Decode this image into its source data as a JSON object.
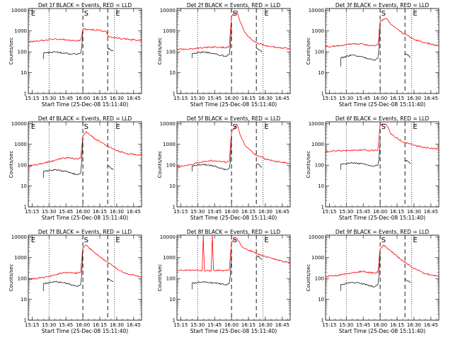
{
  "figure": {
    "ylabel": "Counts/sec",
    "xlabel": "Start Time (25-Dec-08 15:11:40)",
    "x_ticks": [
      "15:15",
      "15:30",
      "15:45",
      "16:00",
      "16:15",
      "16:30",
      "16:45"
    ],
    "y_ticks": [
      "1",
      "10",
      "100",
      "1000",
      "10000"
    ],
    "series_colors": {
      "events": "#000000",
      "lld": "#ff0000"
    },
    "marker_labels": {
      "E": "E",
      "S": "S"
    }
  },
  "chart_data": [
    {
      "type": "line",
      "title": "Det 1f BLACK = Events, RED = LLD",
      "xlim": [
        "15:11:40",
        "16:52:00"
      ],
      "ylim": [
        1,
        12000
      ],
      "log_y": true,
      "dotted_lines": [
        "15:30",
        "16:28"
      ],
      "dashed_lines": [
        "16:00",
        "16:22"
      ],
      "labels": [
        {
          "text": "E",
          "x": "15:14"
        },
        {
          "text": "S",
          "x": "16:01"
        },
        {
          "text": "E",
          "x": "16:29"
        }
      ],
      "events": {
        "x": [
          "15:25",
          "15:25",
          "15:35",
          "15:45",
          "15:55",
          "15:58",
          "15:59",
          "16:00"
        ],
        "y": [
          45,
          85,
          100,
          85,
          75,
          85,
          160,
          1000
        ]
      },
      "events_post": {
        "x": [
          "16:22",
          "16:24",
          "16:27"
        ],
        "y": [
          150,
          130,
          110
        ]
      },
      "lld": {
        "x": [
          "15:11:40",
          "15:25",
          "15:35",
          "15:45",
          "15:52",
          "15:58",
          "16:00",
          "16:05",
          "16:15",
          "16:21",
          "16:22",
          "16:25",
          "16:35",
          "16:45",
          "16:52"
        ],
        "y": [
          300,
          350,
          420,
          380,
          340,
          360,
          1200,
          1200,
          1100,
          900,
          550,
          520,
          420,
          380,
          350
        ]
      }
    },
    {
      "type": "line",
      "title": "Det 2f BLACK = Events, RED = LLD",
      "xlim": [
        "15:11:40",
        "16:52:00"
      ],
      "ylim": [
        1,
        12000
      ],
      "log_y": true,
      "dotted_lines": [
        "15:30",
        "16:28"
      ],
      "dashed_lines": [
        "16:00",
        "16:22"
      ],
      "labels": [
        {
          "text": "S",
          "x": "16:01"
        },
        {
          "text": "E",
          "x": "16:29"
        }
      ],
      "events": {
        "x": [
          "15:25",
          "15:25",
          "15:35",
          "15:45",
          "15:55",
          "15:58",
          "15:59",
          "16:00"
        ],
        "y": [
          50,
          80,
          100,
          80,
          60,
          75,
          200,
          2000
        ]
      },
      "events_post": {
        "x": [
          "16:22",
          "16:25",
          "16:27"
        ],
        "y": [
          150,
          120,
          95
        ]
      },
      "lld": {
        "x": [
          "15:11:40",
          "15:25",
          "15:35",
          "15:45",
          "15:55",
          "15:58",
          "16:00",
          "16:05",
          "16:08",
          "16:12",
          "16:20",
          "16:30",
          "16:40",
          "16:52"
        ],
        "y": [
          130,
          140,
          160,
          170,
          160,
          170,
          5000,
          9000,
          2500,
          800,
          300,
          200,
          160,
          140
        ]
      }
    },
    {
      "type": "line",
      "title": "Det 3f BLACK = Events, RED = LLD",
      "xlim": [
        "15:11:40",
        "16:52:00"
      ],
      "ylim": [
        1,
        12000
      ],
      "log_y": true,
      "dotted_lines": [
        "15:30",
        "16:28"
      ],
      "dashed_lines": [
        "16:00",
        "16:22"
      ],
      "labels": [
        {
          "text": "S",
          "x": "16:01"
        },
        {
          "text": "E",
          "x": "16:29"
        }
      ],
      "events": {
        "x": [
          "15:25",
          "15:25",
          "15:35",
          "15:45",
          "15:55",
          "15:58",
          "15:59",
          "16:00"
        ],
        "y": [
          20,
          50,
          70,
          55,
          40,
          50,
          150,
          1500
        ]
      },
      "events_post": {
        "x": [
          "16:22",
          "16:25",
          "16:27"
        ],
        "y": [
          80,
          70,
          55
        ]
      },
      "lld": {
        "x": [
          "15:11:40",
          "15:25",
          "15:35",
          "15:45",
          "15:55",
          "15:58",
          "16:00",
          "16:05",
          "16:10",
          "16:20",
          "16:30",
          "16:40",
          "16:52"
        ],
        "y": [
          170,
          200,
          240,
          230,
          190,
          220,
          3000,
          4000,
          2000,
          800,
          400,
          260,
          200
        ]
      }
    },
    {
      "type": "line",
      "title": "Det 4f BLACK = Events, RED = LLD",
      "xlim": [
        "15:11:40",
        "16:52:00"
      ],
      "ylim": [
        1,
        12000
      ],
      "log_y": true,
      "dotted_lines": [
        "15:30",
        "16:28"
      ],
      "dashed_lines": [
        "16:00",
        "16:22"
      ],
      "labels": [
        {
          "text": "E",
          "x": "15:14"
        },
        {
          "text": "S",
          "x": "16:01"
        },
        {
          "text": "E",
          "x": "16:29"
        }
      ],
      "events": {
        "x": [
          "15:25",
          "15:25",
          "15:35",
          "15:45",
          "15:55",
          "15:58",
          "15:59",
          "16:00"
        ],
        "y": [
          25,
          50,
          60,
          50,
          35,
          40,
          150,
          2000
        ]
      },
      "events_post": {
        "x": [
          "16:22",
          "16:24",
          "16:27"
        ],
        "y": [
          100,
          80,
          60
        ]
      },
      "lld": {
        "x": [
          "15:11:40",
          "15:25",
          "15:35",
          "15:45",
          "15:55",
          "15:58",
          "16:00",
          "16:03",
          "16:10",
          "16:20",
          "16:30",
          "16:40",
          "16:52"
        ],
        "y": [
          90,
          120,
          170,
          230,
          200,
          220,
          2500,
          4000,
          2000,
          900,
          500,
          350,
          300
        ]
      }
    },
    {
      "type": "line",
      "title": "Det 5f BLACK = Events, RED = LLD",
      "xlim": [
        "15:11:40",
        "16:52:00"
      ],
      "ylim": [
        1,
        12000
      ],
      "log_y": true,
      "dotted_lines": [
        "15:30",
        "16:28"
      ],
      "dashed_lines": [
        "16:00",
        "16:22"
      ],
      "labels": [
        {
          "text": "S",
          "x": "16:01"
        },
        {
          "text": "E",
          "x": "16:29"
        }
      ],
      "events": {
        "x": [
          "15:25",
          "15:25",
          "15:35",
          "15:45",
          "15:55",
          "15:58",
          "15:59",
          "16:00"
        ],
        "y": [
          50,
          90,
          110,
          90,
          60,
          70,
          150,
          1800
        ]
      },
      "events_post": {
        "x": [
          "16:22",
          "16:25",
          "16:27"
        ],
        "y": [
          120,
          100,
          80
        ]
      },
      "lld": {
        "x": [
          "15:11:40",
          "15:25",
          "15:35",
          "15:45",
          "15:55",
          "15:58",
          "16:00",
          "16:05",
          "16:08",
          "16:12",
          "16:20",
          "16:30",
          "16:40",
          "16:52"
        ],
        "y": [
          80,
          110,
          150,
          170,
          140,
          150,
          4000,
          9000,
          2500,
          900,
          350,
          200,
          150,
          120
        ]
      }
    },
    {
      "type": "line",
      "title": "Det 6f BLACK = Events, RED = LLD",
      "xlim": [
        "15:11:40",
        "16:52:00"
      ],
      "ylim": [
        1,
        12000
      ],
      "log_y": true,
      "dotted_lines": [
        "15:30",
        "16:28"
      ],
      "dashed_lines": [
        "16:00",
        "16:22"
      ],
      "labels": [
        {
          "text": "S",
          "x": "16:01"
        },
        {
          "text": "E",
          "x": "16:29"
        }
      ],
      "events": {
        "x": [
          "15:25",
          "15:25",
          "15:35",
          "15:45",
          "15:55",
          "15:58",
          "15:59",
          "16:00"
        ],
        "y": [
          60,
          110,
          130,
          115,
          90,
          100,
          200,
          1500
        ]
      },
      "events_post": {
        "x": [
          "16:22",
          "16:25",
          "16:27"
        ],
        "y": [
          170,
          150,
          120
        ]
      },
      "lld": {
        "x": [
          "15:11:40",
          "15:25",
          "15:35",
          "15:45",
          "15:55",
          "15:58",
          "16:00",
          "16:05",
          "16:10",
          "16:20",
          "16:30",
          "16:40",
          "16:52"
        ],
        "y": [
          450,
          500,
          520,
          530,
          500,
          520,
          9000,
          9500,
          3000,
          1300,
          900,
          700,
          600
        ]
      }
    },
    {
      "type": "line",
      "title": "Det 7f BLACK = Events, RED = LLD",
      "xlim": [
        "15:11:40",
        "16:52:00"
      ],
      "ylim": [
        1,
        12000
      ],
      "log_y": true,
      "dotted_lines": [
        "15:30",
        "16:28"
      ],
      "dashed_lines": [
        "16:00",
        "16:22"
      ],
      "labels": [
        {
          "text": "E",
          "x": "15:14"
        },
        {
          "text": "S",
          "x": "16:01"
        },
        {
          "text": "E",
          "x": "16:29"
        }
      ],
      "events": {
        "x": [
          "15:25",
          "15:25",
          "15:35",
          "15:45",
          "15:55",
          "15:58",
          "15:59",
          "16:00"
        ],
        "y": [
          25,
          55,
          70,
          60,
          40,
          50,
          150,
          2500
        ]
      },
      "events_post": {
        "x": [
          "16:22",
          "16:24",
          "16:27"
        ],
        "y": [
          100,
          85,
          70
        ]
      },
      "lld": {
        "x": [
          "15:11:40",
          "15:25",
          "15:35",
          "15:45",
          "15:55",
          "15:58",
          "16:00",
          "16:03",
          "16:10",
          "16:20",
          "16:30",
          "16:40",
          "16:52"
        ],
        "y": [
          90,
          110,
          150,
          200,
          180,
          200,
          3000,
          4000,
          1800,
          700,
          300,
          160,
          120
        ]
      }
    },
    {
      "type": "line",
      "title": "Det 8f BLACK = Events, RED = LLD",
      "xlim": [
        "15:11:40",
        "16:52:00"
      ],
      "ylim": [
        1,
        12000
      ],
      "log_y": true,
      "dotted_lines": [
        "15:30",
        "16:28"
      ],
      "dashed_lines": [
        "16:00",
        "16:22"
      ],
      "labels": [
        {
          "text": "S",
          "x": "16:01"
        },
        {
          "text": "E",
          "x": "16:29"
        }
      ],
      "events": {
        "x": [
          "15:25",
          "15:25",
          "15:35",
          "15:45",
          "15:55",
          "15:58",
          "15:59",
          "16:00"
        ],
        "y": [
          30,
          60,
          70,
          60,
          50,
          60,
          150,
          2000
        ]
      },
      "events_post": {
        "x": [
          "16:22",
          "16:25",
          "16:27"
        ],
        "y": [
          1300,
          1000,
          800
        ]
      },
      "lld": {
        "x": [
          "15:11:40",
          "15:25",
          "15:34",
          "15:35",
          "15:36",
          "15:42",
          "15:43",
          "15:44",
          "15:55",
          "15:58",
          "16:00",
          "16:05",
          "16:10",
          "16:20",
          "16:30",
          "16:40",
          "16:52"
        ],
        "y": [
          260,
          250,
          240,
          12000,
          240,
          230,
          12000,
          250,
          240,
          260,
          6000,
          8000,
          3000,
          1800,
          1100,
          800,
          550
        ]
      }
    },
    {
      "type": "line",
      "title": "Det 9f BLACK = Events, RED = LLD",
      "xlim": [
        "15:11:40",
        "16:52:00"
      ],
      "ylim": [
        1,
        12000
      ],
      "log_y": true,
      "dotted_lines": [
        "15:30",
        "16:28"
      ],
      "dashed_lines": [
        "16:00",
        "16:22"
      ],
      "labels": [
        {
          "text": "S",
          "x": "16:01"
        },
        {
          "text": "E",
          "x": "16:29"
        }
      ],
      "events": {
        "x": [
          "15:25",
          "15:25",
          "15:35",
          "15:45",
          "15:55",
          "15:58",
          "15:59",
          "16:00"
        ],
        "y": [
          25,
          50,
          65,
          55,
          40,
          50,
          150,
          2000
        ]
      },
      "events_post": {
        "x": [
          "16:22",
          "16:25",
          "16:27"
        ],
        "y": [
          90,
          75,
          60
        ]
      },
      "lld": {
        "x": [
          "15:11:40",
          "15:25",
          "15:35",
          "15:45",
          "15:55",
          "15:58",
          "16:00",
          "16:03",
          "16:10",
          "16:20",
          "16:30",
          "16:40",
          "16:52"
        ],
        "y": [
          120,
          150,
          190,
          220,
          180,
          200,
          2500,
          4000,
          2000,
          700,
          300,
          170,
          130
        ]
      }
    }
  ]
}
